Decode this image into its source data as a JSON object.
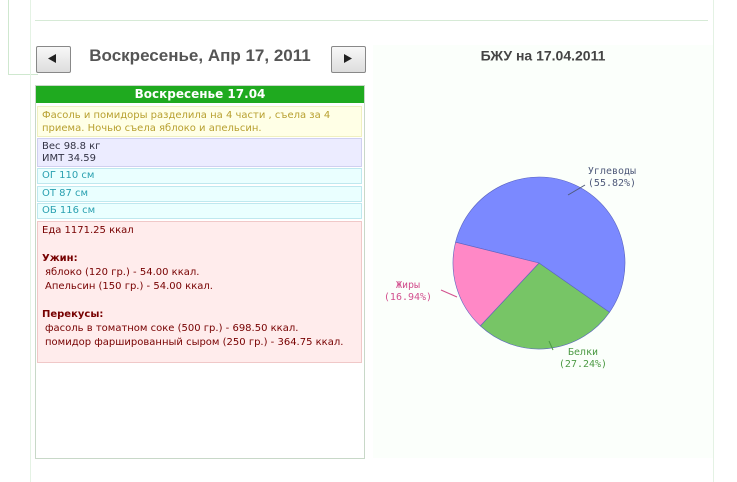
{
  "date_title": "Воскресенье, Апр 17, 2011",
  "day": {
    "title": "Воскресенье 17.04",
    "note": "Фасоль и помидоры разделила на 4 части , съела за 4 приема. Ночью съела яблоко и апельсин.",
    "weight": "Вес 98.8 кг",
    "bmi": "ИМТ 34.59",
    "measures": [
      "ОГ 110 см",
      "ОТ 87 см",
      "ОБ 116 см"
    ],
    "food_total": "Еда 1171.25 ккал",
    "meals": [
      {
        "name": "Ужин:",
        "items": [
          "яблоко (120 гр.) - 54.00 ккал.",
          "Апельсин (150 гр.) - 54.00 ккал."
        ]
      },
      {
        "name": "Перекусы:",
        "items": [
          "фасоль в томатном соке (500 гр.) - 698.50 ккал.",
          "помидор фаршированный сыром (250 гр.) - 364.75 ккал."
        ]
      }
    ]
  },
  "chart_data": {
    "type": "pie",
    "title": "БЖУ на 17.04.2011",
    "categories": [
      "Углеводы",
      "Белки",
      "Жиры"
    ],
    "values": [
      55.82,
      27.24,
      16.94
    ],
    "value_labels": [
      "(55.82%)",
      "(27.24%)",
      "(16.94%)"
    ],
    "colors": [
      "#7b89ff",
      "#77c566",
      "#ff88c6"
    ],
    "label_colors": [
      "#4f5a7a",
      "#4c9a44",
      "#d2508e"
    ]
  }
}
